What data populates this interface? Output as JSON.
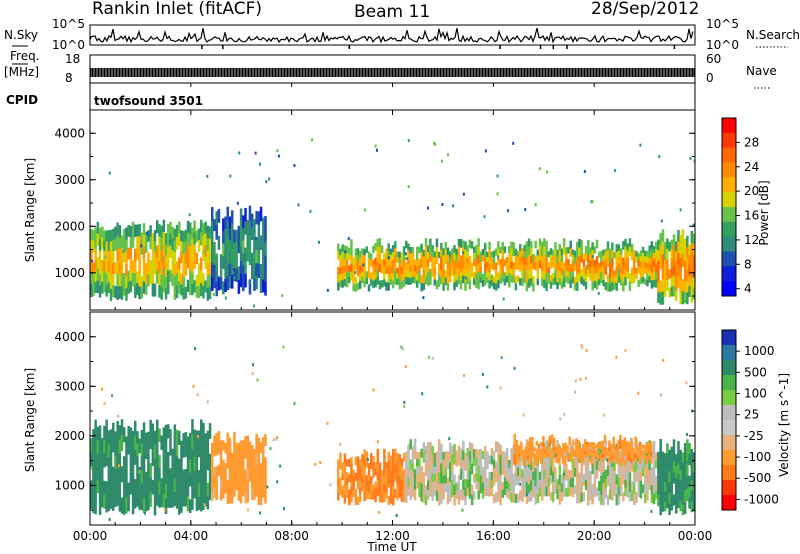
{
  "header": {
    "station": "Rankin Inlet (fitACF)",
    "beam": "Beam 11",
    "date": "28/Sep/2012"
  },
  "nsky_panel": {
    "label": "N.Sky",
    "left_ticks": [
      "10^5",
      "10^0"
    ],
    "right_ticks": [
      "10^5",
      "10^0"
    ],
    "right_label": "N.Search"
  },
  "freq_panel": {
    "label_line1": "Freq.",
    "label_line2": "[MHz]",
    "left_ticks": [
      "18",
      "8"
    ],
    "right_ticks": [
      "60",
      "0"
    ],
    "right_label": "Nave"
  },
  "cpid_panel": {
    "label": "CPID",
    "text": "twofsound 3501"
  },
  "power_panel": {
    "ylabel": "Slant Range [km]",
    "yticks": [
      "4000",
      "3000",
      "2000",
      "1000"
    ],
    "cbar_label": "Power [dB]",
    "cbar_ticks": [
      "28",
      "24",
      "20",
      "16",
      "12",
      "8",
      "4"
    ],
    "cbar_colors": [
      "#ff0000",
      "#ff3a00",
      "#ff6a00",
      "#ff8c00",
      "#ffb000",
      "#d7d300",
      "#66c24a",
      "#33a060",
      "#2f8a7a",
      "#1f4fb0",
      "#0d1fd8",
      "#0000ff"
    ]
  },
  "velocity_panel": {
    "ylabel": "Slant Range [km]",
    "yticks": [
      "4000",
      "3000",
      "2000",
      "1000"
    ],
    "cbar_label": "Velocity [m s^-1]",
    "cbar_ticks": [
      "1000",
      "500",
      "100",
      "25",
      "-25",
      "-100",
      "-500",
      "-1000"
    ],
    "cbar_colors": [
      "#1a2fb4",
      "#2b7aa5",
      "#2f8a6a",
      "#49b449",
      "#7acd43",
      "#bdbdbd",
      "#c8c8c8",
      "#e8b07a",
      "#ff9b30",
      "#ff7a1a",
      "#ff3a00",
      "#ff0000"
    ]
  },
  "x_axis": {
    "label": "Time UT",
    "ticks": [
      "00:00",
      "04:00",
      "08:00",
      "12:00",
      "16:00",
      "20:00",
      "00:00"
    ]
  },
  "chart_data": [
    {
      "type": "heatmap",
      "title": "Power",
      "xlabel": "Time UT",
      "ylabel": "Slant Range [km]",
      "xlim": [
        0,
        24
      ],
      "ylim": [
        200,
        4500
      ],
      "zlabel": "Power [dB]",
      "zlim": [
        0,
        32
      ],
      "bands": [
        {
          "t": [
            0,
            4.8
          ],
          "range": [
            500,
            2000
          ],
          "value": 22
        },
        {
          "t": [
            4.8,
            7.0
          ],
          "range": [
            600,
            2300
          ],
          "value": 12
        },
        {
          "t": [
            9.8,
            22.5
          ],
          "range": [
            700,
            1600
          ],
          "value": 24
        },
        {
          "t": [
            22.5,
            24
          ],
          "range": [
            400,
            1800
          ],
          "value": 26
        }
      ]
    },
    {
      "type": "heatmap",
      "title": "Velocity",
      "xlabel": "Time UT",
      "ylabel": "Slant Range [km]",
      "xlim": [
        0,
        24
      ],
      "ylim": [
        200,
        4500
      ],
      "zlabel": "Velocity [m s^-1]",
      "zlim": [
        -1000,
        1000
      ],
      "bands": [
        {
          "t": [
            0,
            4.8
          ],
          "range": [
            500,
            2200
          ],
          "value": 150
        },
        {
          "t": [
            4.8,
            7.0
          ],
          "range": [
            700,
            2000
          ],
          "value": -150
        },
        {
          "t": [
            9.8,
            12.5
          ],
          "range": [
            700,
            1600
          ],
          "value": -300
        },
        {
          "t": [
            12.5,
            22.5
          ],
          "range": [
            700,
            1800
          ],
          "value": 0
        },
        {
          "t": [
            16.8,
            22.3
          ],
          "range": [
            1500,
            1900
          ],
          "value": -250
        },
        {
          "t": [
            22.5,
            24
          ],
          "range": [
            500,
            1800
          ],
          "value": 120
        }
      ]
    }
  ]
}
